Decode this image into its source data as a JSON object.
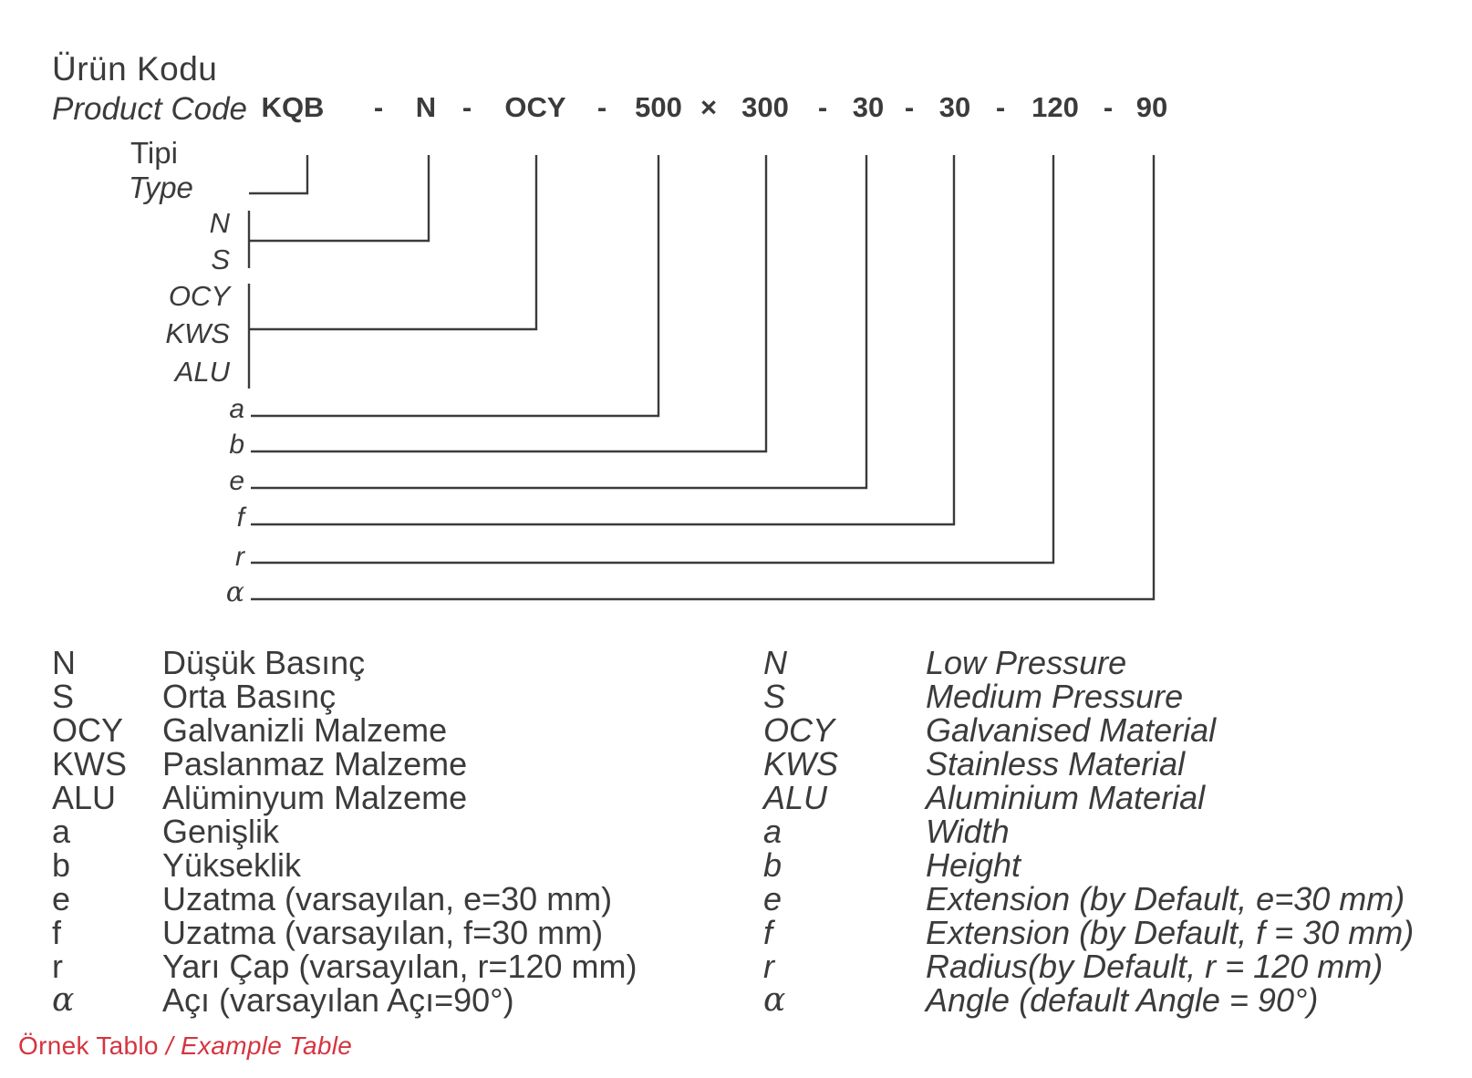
{
  "header": {
    "title_tr": "Ürün Kodu",
    "title_en": "Product Code",
    "code_segments": [
      "KQB",
      "-",
      "N",
      "-",
      "OCY",
      "-",
      "500",
      "×",
      "300",
      "-",
      "30",
      "-",
      "30",
      "-",
      "120",
      "-",
      "90"
    ]
  },
  "diagram": {
    "type_label_tr": "Tipi",
    "type_label_en": "Type",
    "pressure_options": [
      "N",
      "S"
    ],
    "material_options": [
      "OCY",
      "KWS",
      "ALU"
    ],
    "dimension_labels": [
      "a",
      "b",
      "e",
      "f",
      "r",
      "α"
    ]
  },
  "legend": {
    "rows": [
      {
        "code": "N",
        "tr": "Düşük Basınç",
        "en": "Low Pressure"
      },
      {
        "code": "S",
        "tr": "Orta Basınç",
        "en": "Medium Pressure"
      },
      {
        "code": "OCY",
        "tr": "Galvanizli Malzeme",
        "en": "Galvanised Material"
      },
      {
        "code": "KWS",
        "tr": "Paslanmaz Malzeme",
        "en": "Stainless Material"
      },
      {
        "code": "ALU",
        "tr": "Alüminyum Malzeme",
        "en": "Aluminium Material"
      },
      {
        "code": "a",
        "tr": "Genişlik",
        "en": "Width"
      },
      {
        "code": "b",
        "tr": "Yükseklik",
        "en": "Height"
      },
      {
        "code": "e",
        "tr": "Uzatma (varsayılan, e=30 mm)",
        "en": "Extension (by Default, e=30 mm)"
      },
      {
        "code": "f",
        "tr": "Uzatma (varsayılan, f=30 mm)",
        "en": "Extension (by Default, f = 30 mm)"
      },
      {
        "code": "r",
        "tr": "Yarı Çap (varsayılan, r=120 mm)",
        "en": "Radius(by Default, r = 120 mm)"
      },
      {
        "code": "α",
        "tr": "Açı (varsayılan Açı=90°)",
        "en": "Angle (default Angle = 90°)"
      }
    ]
  },
  "footer": {
    "tr": "Örnek Tablo",
    "sep": "/",
    "en": "Example Table"
  },
  "colors": {
    "text": "#3b3b3b",
    "line": "#3b3b3b",
    "accent_red": "#d5343f"
  }
}
